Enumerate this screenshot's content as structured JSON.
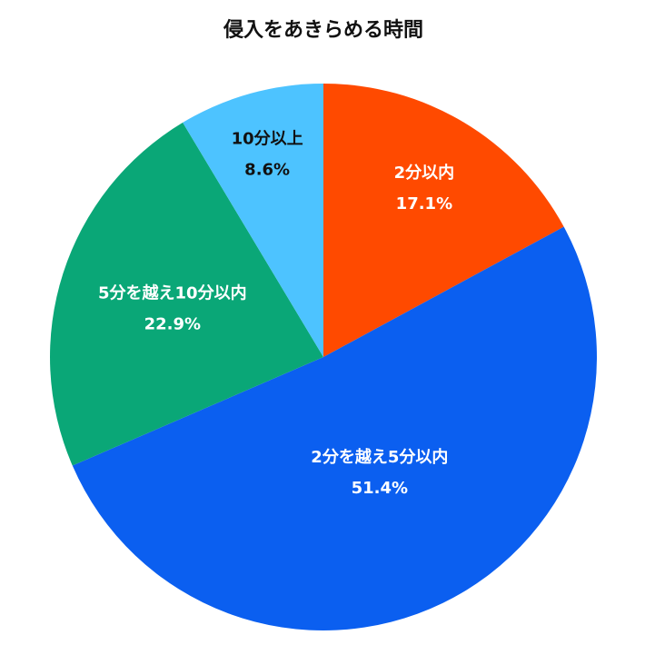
{
  "chart_data": {
    "type": "pie",
    "title": "侵入をあきらめる時間",
    "categories": [
      "2分以内",
      "2分を越え5分以内",
      "5分を越え10分以内",
      "10分以上"
    ],
    "values": [
      17.1,
      51.4,
      22.9,
      8.6
    ],
    "value_labels": [
      "17.1%",
      "51.4%",
      "22.9%",
      "8.6%"
    ],
    "colors": [
      "#ff4a00",
      "#0b5ff0",
      "#0aa777",
      "#4dc3ff"
    ]
  }
}
